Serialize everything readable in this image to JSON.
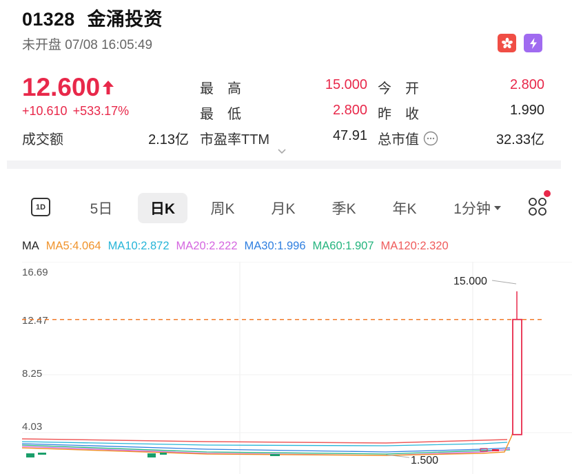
{
  "stock": {
    "code": "01328",
    "name": "金涌投资",
    "status_time": "未开盘 07/08 16:05:49",
    "price": "12.600",
    "change": "+10.610",
    "change_pct": "+533.17%"
  },
  "stats": {
    "turnover_label": "成交额",
    "turnover_value": "2.13亿",
    "high_label": "最　高",
    "high_value": "15.000",
    "low_label": "最　低",
    "low_value": "2.800",
    "pe_label": "市盈率TTM",
    "pe_value": "47.91",
    "open_label": "今　开",
    "open_value": "2.800",
    "prev_close_label": "昨　收",
    "prev_close_value": "1.990",
    "mcap_label": "总市值",
    "mcap_value": "32.33亿"
  },
  "tabs": {
    "icon_1d": "1D",
    "five_day": "5日",
    "day_k": "日K",
    "week_k": "周K",
    "month_k": "月K",
    "quarter_k": "季K",
    "year_k": "年K",
    "minute": "1分钟"
  },
  "ma": {
    "label": "MA",
    "ma5": "MA5:4.064",
    "ma10": "MA10:2.872",
    "ma20": "MA20:2.222",
    "ma30": "MA30:1.996",
    "ma60": "MA60:1.907",
    "ma120": "MA120:2.320"
  },
  "colors": {
    "up": "#e8284a",
    "down": "#1a9e6a",
    "ma5": "#f0932b",
    "ma10": "#27b5d8",
    "ma20": "#d566e0",
    "ma30": "#2f7fe0",
    "ma60": "#24b47e",
    "ma120": "#ef5b5b",
    "ref_line": "#f07a2a"
  },
  "chart_data": {
    "type": "candlestick",
    "y_ticks": [
      "16.69",
      "12.47",
      "8.25",
      "4.03"
    ],
    "ylim": [
      0.5,
      16.69
    ],
    "reference_line": 12.6,
    "high_annotation": "15.000",
    "low_annotation": "1.500",
    "last_candle": {
      "open": 2.8,
      "high": 15.0,
      "low": 2.8,
      "close": 12.6
    },
    "grid": true
  }
}
